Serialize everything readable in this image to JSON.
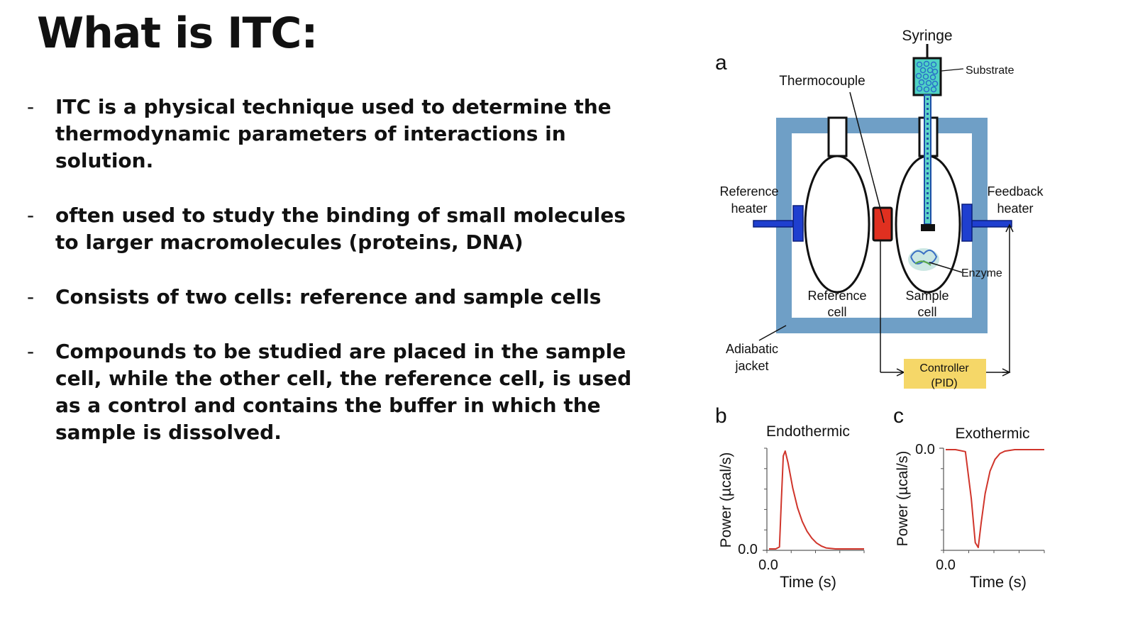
{
  "title": "What is ITC:",
  "bullet_marker": "-",
  "bullets": [
    "ITC is a physical technique used to determine the thermodynamic parameters of interactions in solution.",
    "often used to study the binding of small molecules to larger macromolecules (proteins, DNA)",
    "Consists of two cells: reference and sample cells",
    "Compounds to be studied are placed in the sample cell, while the other cell, the reference cell, is used as a control and contains the buffer in which the sample is dissolved."
  ],
  "figure": {
    "panel_a": "a",
    "panel_b": "b",
    "panel_c": "c",
    "syringe": "Syringe",
    "substrate": "Substrate",
    "thermocouple": "Thermocouple",
    "reference_heater": [
      "Reference",
      "heater"
    ],
    "feedback_heater": [
      "Feedback",
      "heater"
    ],
    "enzyme": "Enzyme",
    "reference_cell": [
      "Reference",
      "cell"
    ],
    "sample_cell": [
      "Sample",
      "cell"
    ],
    "adiabatic_jacket": [
      "Adiabatic",
      "jacket"
    ],
    "controller": [
      "Controller",
      "(PID)"
    ],
    "colors": {
      "jacket": "#6f9fc6",
      "heater": "#1f3fcf",
      "thermocouple": "#e03020",
      "controller": "#f5d768",
      "trace": "#d0352b",
      "syringe": "#4fd3c4"
    }
  },
  "chart_data": [
    {
      "type": "line",
      "title": "Endothermic",
      "xlabel": "Time (s)",
      "ylabel": "Power (µcal/s)",
      "xtick_labels": [
        "0.0"
      ],
      "ytick_labels": [
        "0.0"
      ],
      "series": [
        {
          "x": [
            0,
            0.07,
            0.11,
            0.13,
            0.15,
            0.17,
            0.2,
            0.25,
            0.3,
            0.35,
            0.4,
            0.45,
            0.5,
            0.55,
            0.6,
            0.7,
            0.8,
            0.9,
            1.0
          ],
          "y": [
            0,
            0,
            0.02,
            0.5,
            0.95,
            1.0,
            0.88,
            0.62,
            0.42,
            0.28,
            0.18,
            0.11,
            0.06,
            0.03,
            0.01,
            0.0,
            0.0,
            0.0,
            0.0
          ]
        }
      ]
    },
    {
      "type": "line",
      "title": "Exothermic",
      "xlabel": "Time (s)",
      "ylabel": "Power (µcal/s)",
      "xtick_labels": [
        "0.0"
      ],
      "ytick_labels": [
        "0.0"
      ],
      "series": [
        {
          "x": [
            0,
            0.1,
            0.2,
            0.26,
            0.3,
            0.33,
            0.36,
            0.4,
            0.45,
            0.5,
            0.55,
            0.6,
            0.7,
            0.8,
            0.9,
            1.0
          ],
          "y": [
            0,
            0,
            -0.02,
            -0.5,
            -0.95,
            -1.0,
            -0.75,
            -0.45,
            -0.22,
            -0.1,
            -0.04,
            -0.015,
            0.0,
            0.0,
            0.0,
            0.0
          ]
        }
      ]
    }
  ]
}
